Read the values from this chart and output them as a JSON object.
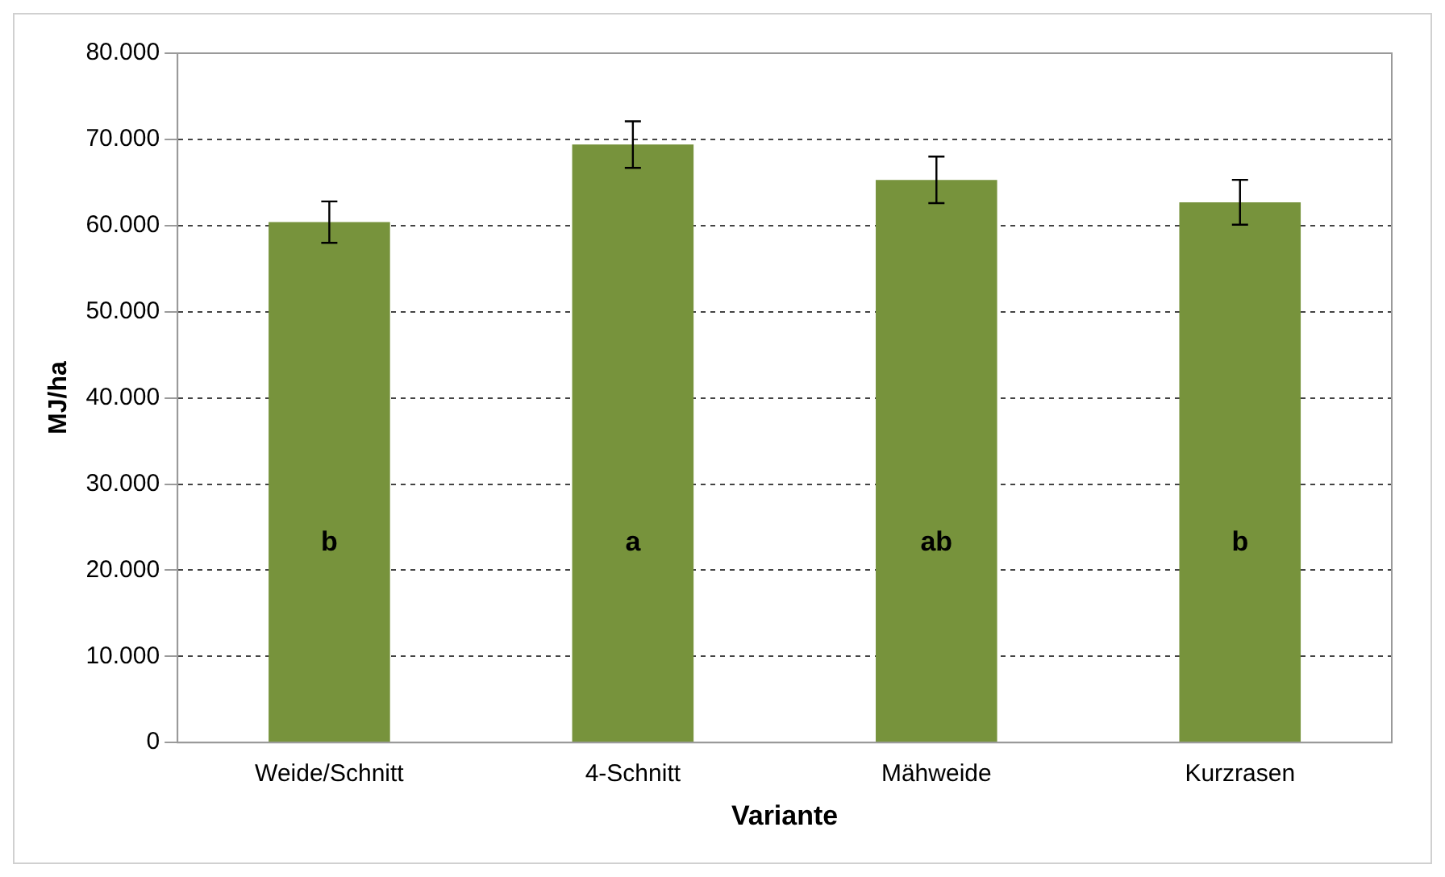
{
  "chart_data": {
    "type": "bar",
    "xlabel": "Variante",
    "ylabel": "MJ/ha",
    "categories": [
      "Weide/Schnitt",
      "4-Schnitt",
      "Mähweide",
      "Kurzrasen"
    ],
    "values": [
      60400,
      69400,
      65300,
      62700
    ],
    "errors": [
      2400,
      2700,
      2700,
      2600
    ],
    "color": "#77933c",
    "ylim": [
      0,
      80000
    ],
    "yticks": [
      0,
      {
        "value": 10000,
        "label": "10.000"
      },
      {
        "value": 20000,
        "label": "20.000"
      },
      {
        "value": 30000,
        "label": "30.000"
      },
      {
        "value": 40000,
        "label": "40.000"
      },
      {
        "value": 50000,
        "label": "50.000"
      },
      {
        "value": 60000,
        "label": "60.000"
      },
      {
        "value": 70000,
        "label": "70.000"
      },
      {
        "value": 80000,
        "label": "80.000"
      }
    ],
    "grid": "y",
    "annotations": [
      "b",
      "a",
      "ab",
      "b"
    ]
  }
}
